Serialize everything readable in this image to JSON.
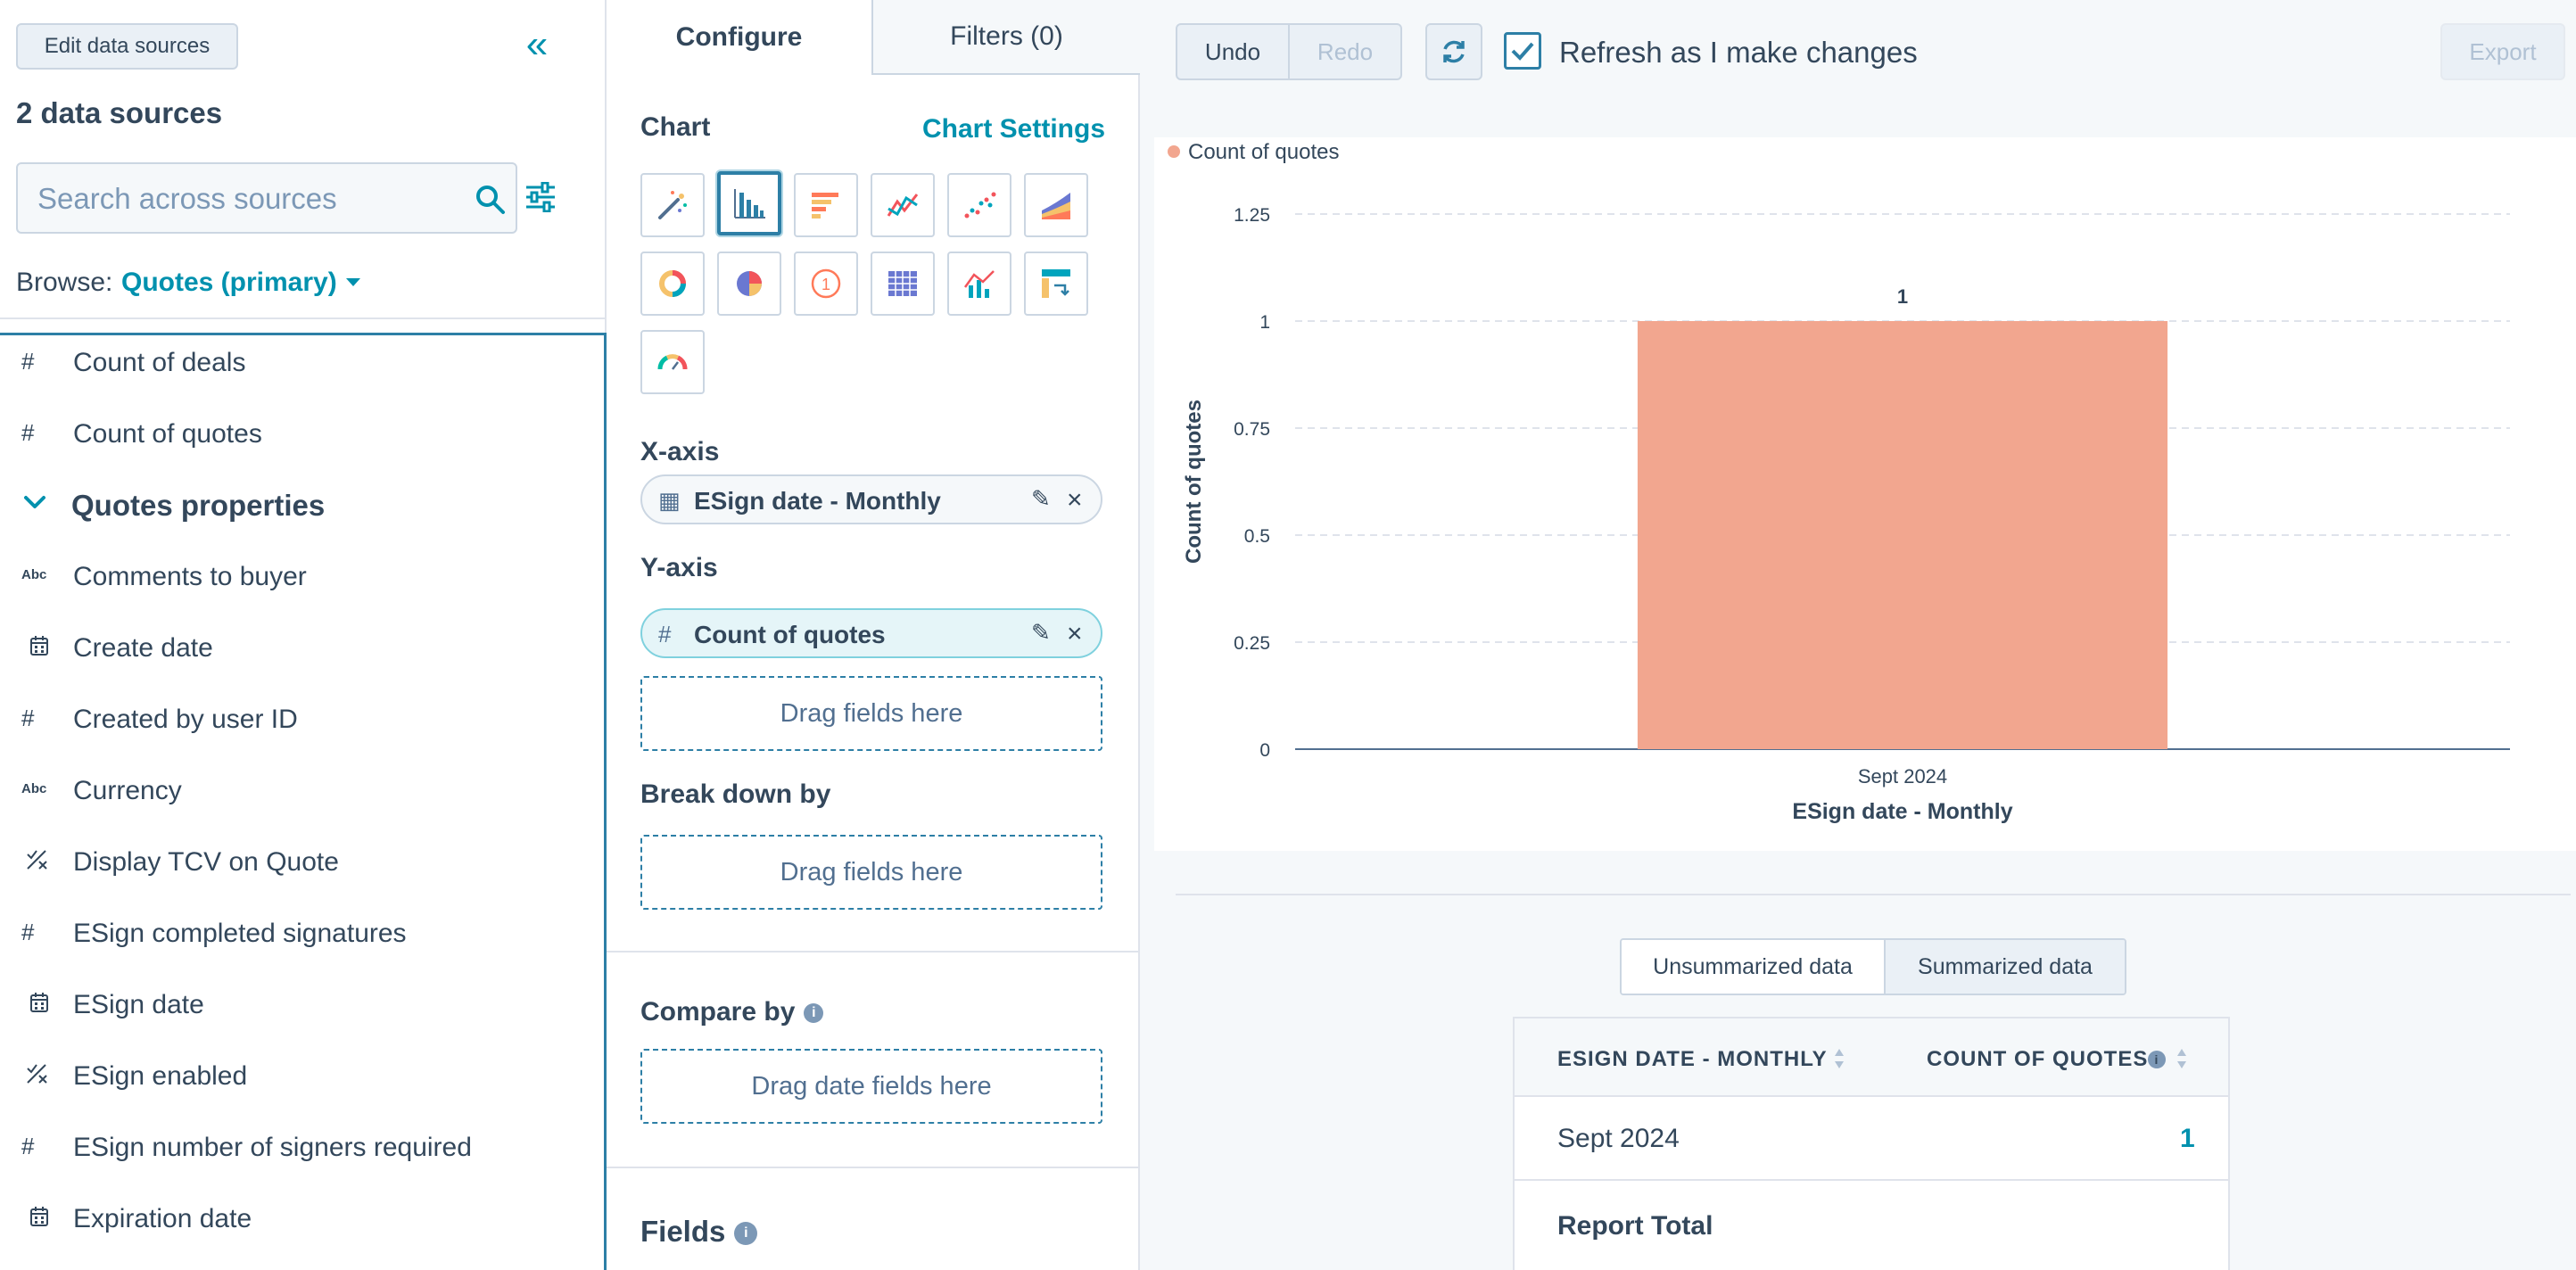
{
  "left": {
    "edit_button": "Edit data sources",
    "title": "2 data sources",
    "search_placeholder": "Search across sources",
    "browse_label": "Browse:",
    "browse_value": "Quotes (primary)",
    "items": [
      {
        "icon": "#",
        "label": "Count of deals"
      },
      {
        "icon": "#",
        "label": "Count of quotes"
      }
    ],
    "group": "Quotes properties",
    "properties": [
      {
        "icon": "Abc",
        "label": "Comments to buyer"
      },
      {
        "icon": "calendar",
        "label": "Create date"
      },
      {
        "icon": "#",
        "label": "Created by user ID"
      },
      {
        "icon": "Abc",
        "label": "Currency"
      },
      {
        "icon": "toggle",
        "label": "Display TCV on Quote"
      },
      {
        "icon": "#",
        "label": "ESign completed signatures"
      },
      {
        "icon": "calendar",
        "label": "ESign date"
      },
      {
        "icon": "toggle",
        "label": "ESign enabled"
      },
      {
        "icon": "#",
        "label": "ESign number of signers required"
      },
      {
        "icon": "calendar",
        "label": "Expiration date"
      }
    ]
  },
  "middle": {
    "tabs": [
      "Configure",
      "Filters (0)"
    ],
    "chart_heading": "Chart",
    "chart_settings": "Chart Settings",
    "xaxis_heading": "X-axis",
    "xaxis_field": "ESign date - Monthly",
    "yaxis_heading": "Y-axis",
    "yaxis_field": "Count of quotes",
    "drag_here": "Drag fields here",
    "breakdown_heading": "Break down by",
    "compare_heading": "Compare by",
    "drag_date": "Drag date fields here",
    "fields_heading": "Fields"
  },
  "right": {
    "undo": "Undo",
    "redo": "Redo",
    "refresh_label": "Refresh as I make changes",
    "export": "Export",
    "toggle": [
      "Unsummarized data",
      "Summarized data"
    ],
    "table": {
      "headers": [
        "ESIGN DATE - MONTHLY",
        "COUNT OF QUOTES"
      ],
      "rows": [
        {
          "date": "Sept 2024",
          "count": "1"
        }
      ],
      "total_label": "Report Total"
    }
  },
  "colors": {
    "accent": "#0091ae",
    "bar": "#f2a68f",
    "text": "#33475b"
  },
  "chart_data": {
    "type": "bar",
    "categories": [
      "Sept 2024"
    ],
    "series": [
      {
        "name": "Count of quotes",
        "values": [
          1
        ]
      }
    ],
    "data_labels": [
      "1"
    ],
    "xlabel": "ESign date - Monthly",
    "ylabel": "Count of quotes",
    "ylim": [
      0,
      1.25
    ],
    "yticks": [
      "0",
      "0.25",
      "0.5",
      "0.75",
      "1",
      "1.25"
    ],
    "legend": "top-left",
    "grid": true
  }
}
